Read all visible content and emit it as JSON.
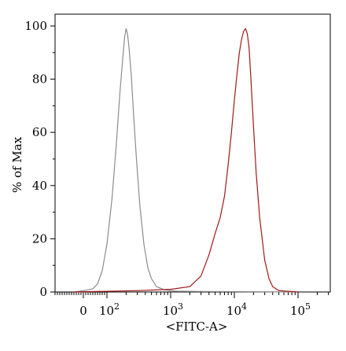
{
  "chart_data": {
    "type": "histogram-overlay",
    "title": "",
    "xlabel": "<FITC-A>",
    "ylabel": "% of Max",
    "x_scale": "biexponential",
    "ylim": [
      0,
      100
    ],
    "y_ticks": [
      {
        "value": 0,
        "label": "0"
      },
      {
        "value": 20,
        "label": "20"
      },
      {
        "value": 40,
        "label": "40"
      },
      {
        "value": 60,
        "label": "60"
      },
      {
        "value": 80,
        "label": "80"
      },
      {
        "value": 100,
        "label": "100"
      }
    ],
    "x_ticks": [
      {
        "value": 0,
        "base": "0",
        "exp": ""
      },
      {
        "value": 100,
        "base": "10",
        "exp": "2"
      },
      {
        "value": 1000,
        "base": "10",
        "exp": "3"
      },
      {
        "value": 10000,
        "base": "10",
        "exp": "4"
      },
      {
        "value": 100000,
        "base": "10",
        "exp": "5"
      }
    ],
    "grid": false,
    "series": [
      {
        "color": "#8c8c8c",
        "points": [
          [
            -40,
            0
          ],
          [
            0,
            0.5
          ],
          [
            20,
            0.8
          ],
          [
            40,
            1.2
          ],
          [
            60,
            3
          ],
          [
            80,
            8
          ],
          [
            100,
            18
          ],
          [
            120,
            35
          ],
          [
            140,
            55
          ],
          [
            160,
            75
          ],
          [
            180,
            90
          ],
          [
            190,
            96
          ],
          [
            200,
            99
          ],
          [
            210,
            97
          ],
          [
            220,
            93
          ],
          [
            240,
            82
          ],
          [
            260,
            68
          ],
          [
            290,
            50
          ],
          [
            330,
            32
          ],
          [
            380,
            18
          ],
          [
            440,
            9
          ],
          [
            500,
            5
          ],
          [
            600,
            2
          ],
          [
            800,
            0.8
          ],
          [
            1200,
            0.3
          ],
          [
            3000,
            0.2
          ],
          [
            100000,
            0
          ]
        ]
      },
      {
        "color": "#a01818",
        "points": [
          [
            -40,
            0
          ],
          [
            300,
            0.5
          ],
          [
            1000,
            1
          ],
          [
            2000,
            2
          ],
          [
            3000,
            6
          ],
          [
            4000,
            14
          ],
          [
            5000,
            22
          ],
          [
            6000,
            28
          ],
          [
            7000,
            36
          ],
          [
            8000,
            48
          ],
          [
            9000,
            60
          ],
          [
            10000,
            72
          ],
          [
            11000,
            82
          ],
          [
            12000,
            90
          ],
          [
            13000,
            95
          ],
          [
            14000,
            98
          ],
          [
            15000,
            99
          ],
          [
            16000,
            97
          ],
          [
            17000,
            92
          ],
          [
            18000,
            82
          ],
          [
            20000,
            62
          ],
          [
            22000,
            45
          ],
          [
            25000,
            28
          ],
          [
            30000,
            12
          ],
          [
            35000,
            5
          ],
          [
            40000,
            2
          ],
          [
            50000,
            0.5
          ],
          [
            100000,
            0
          ]
        ]
      }
    ]
  }
}
